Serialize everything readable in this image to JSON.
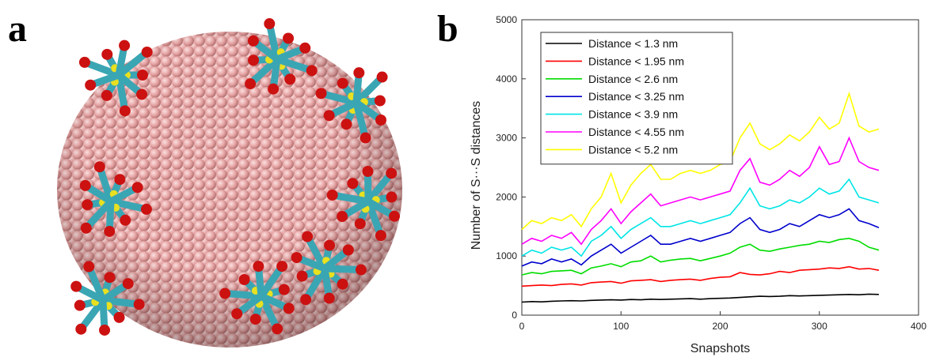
{
  "panel_labels": [
    "a",
    "b"
  ],
  "chart_data": {
    "type": "line",
    "x_label": "Snapshots",
    "y_label": "Number of S···S distances",
    "xlim": [
      0,
      400
    ],
    "xticks": [
      0,
      100,
      200,
      300,
      400
    ],
    "ylim": [
      0,
      5000
    ],
    "yticks": [
      0,
      1000,
      2000,
      3000,
      4000,
      5000
    ],
    "legend": "upper left",
    "x": [
      0,
      10,
      20,
      30,
      40,
      50,
      60,
      70,
      80,
      90,
      100,
      110,
      120,
      130,
      140,
      150,
      160,
      170,
      180,
      190,
      200,
      210,
      220,
      230,
      240,
      250,
      260,
      270,
      280,
      290,
      300,
      310,
      320,
      330,
      340,
      350,
      360
    ],
    "series": [
      {
        "name": "Distance < 1.3 nm",
        "color": "#000000",
        "values": [
          220,
          230,
          225,
          235,
          240,
          245,
          240,
          250,
          255,
          260,
          255,
          265,
          260,
          270,
          265,
          270,
          275,
          280,
          270,
          280,
          285,
          290,
          300,
          310,
          320,
          315,
          320,
          330,
          325,
          330,
          335,
          340,
          345,
          350,
          345,
          355,
          350
        ]
      },
      {
        "name": "Distance < 1.95 nm",
        "color": "#ff0000",
        "values": [
          490,
          500,
          510,
          500,
          520,
          530,
          510,
          550,
          560,
          570,
          540,
          580,
          590,
          600,
          570,
          590,
          600,
          610,
          590,
          620,
          640,
          650,
          720,
          690,
          680,
          700,
          740,
          720,
          760,
          770,
          780,
          800,
          790,
          820,
          780,
          790,
          760
        ]
      },
      {
        "name": "Distance < 2.6 nm",
        "color": "#00dd00",
        "values": [
          680,
          720,
          700,
          740,
          750,
          760,
          700,
          800,
          830,
          870,
          820,
          900,
          920,
          1000,
          900,
          930,
          950,
          960,
          920,
          960,
          1000,
          1050,
          1150,
          1200,
          1100,
          1080,
          1120,
          1150,
          1180,
          1200,
          1250,
          1230,
          1280,
          1300,
          1250,
          1150,
          1100
        ]
      },
      {
        "name": "Distance < 3.25 nm",
        "color": "#0000cc",
        "values": [
          830,
          900,
          870,
          950,
          900,
          950,
          850,
          1000,
          1100,
          1200,
          1050,
          1150,
          1250,
          1350,
          1200,
          1200,
          1250,
          1300,
          1250,
          1300,
          1350,
          1400,
          1550,
          1650,
          1450,
          1400,
          1450,
          1550,
          1500,
          1600,
          1700,
          1650,
          1700,
          1800,
          1600,
          1550,
          1480
        ]
      },
      {
        "name": "Distance < 3.9 nm",
        "color": "#00e5e5",
        "values": [
          1000,
          1100,
          1050,
          1150,
          1100,
          1150,
          1000,
          1250,
          1350,
          1500,
          1300,
          1450,
          1550,
          1650,
          1500,
          1500,
          1550,
          1600,
          1550,
          1600,
          1650,
          1700,
          1900,
          2150,
          1850,
          1800,
          1850,
          1950,
          1900,
          2000,
          2150,
          2050,
          2100,
          2300,
          2000,
          1950,
          1900
        ]
      },
      {
        "name": "Distance < 4.55 nm",
        "color": "#ff00ff",
        "values": [
          1200,
          1300,
          1250,
          1350,
          1300,
          1400,
          1200,
          1450,
          1600,
          1800,
          1550,
          1750,
          1900,
          2050,
          1850,
          1900,
          1950,
          2000,
          1950,
          2000,
          2050,
          2100,
          2450,
          2650,
          2250,
          2200,
          2300,
          2450,
          2350,
          2500,
          2850,
          2550,
          2600,
          3000,
          2600,
          2500,
          2450
        ]
      },
      {
        "name": "Distance < 5.2 nm",
        "color": "#ffff00",
        "values": [
          1450,
          1600,
          1550,
          1650,
          1600,
          1700,
          1500,
          1800,
          2000,
          2400,
          1900,
          2200,
          2400,
          2550,
          2300,
          2300,
          2400,
          2450,
          2400,
          2450,
          2550,
          2600,
          3000,
          3250,
          2900,
          2800,
          2900,
          3050,
          2950,
          3100,
          3350,
          3150,
          3250,
          3750,
          3200,
          3100,
          3150
        ]
      }
    ]
  }
}
